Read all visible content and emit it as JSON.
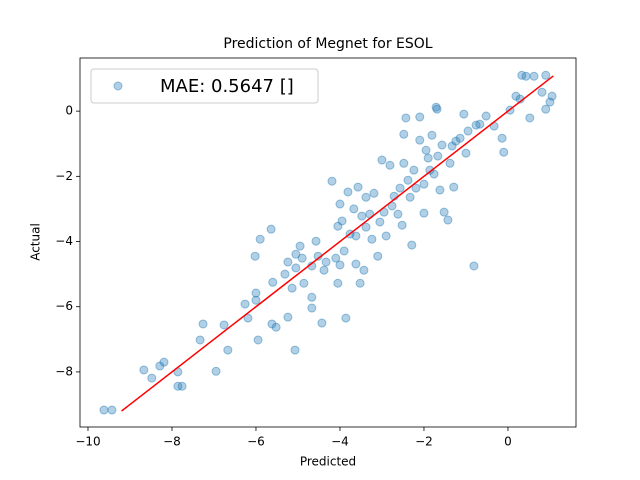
{
  "chart_data": {
    "type": "scatter",
    "title": "Prediction of Megnet for ESOL",
    "x_label": "Predicted",
    "y_label": "Actual",
    "xlim": [
      -10.19,
      1.62
    ],
    "ylim": [
      -9.69,
      1.63
    ],
    "xticks": [
      {
        "value": -10,
        "label": "−10"
      },
      {
        "value": -8,
        "label": "−8"
      },
      {
        "value": -6,
        "label": "−6"
      },
      {
        "value": -4,
        "label": "−4"
      },
      {
        "value": -2,
        "label": "−2"
      },
      0
    ],
    "yticks": [
      {
        "value": -8,
        "label": "−8"
      },
      {
        "value": -6,
        "label": "−6"
      },
      {
        "value": -4,
        "label": "−4"
      },
      {
        "value": -2,
        "label": "−2"
      },
      0
    ],
    "grid": false,
    "legend": "upper left",
    "series": [
      {
        "name": "MAE: 0.5647 []",
        "color": "#1f77b4",
        "x": [
          -9.62,
          -9.43,
          -8.67,
          -8.48,
          -8.29,
          -8.19,
          -7.86,
          -7.86,
          -7.76,
          -7.33,
          -7.26,
          -6.95,
          -6.76,
          -6.67,
          -6.26,
          -6.19,
          -6.0,
          -6.0,
          -5.95,
          -6.02,
          -5.9,
          -5.64,
          -5.62,
          -5.52,
          -5.6,
          -5.31,
          -5.24,
          -5.24,
          -5.07,
          -5.14,
          -5.05,
          -5.05,
          -4.95,
          -4.9,
          -4.86,
          -4.67,
          -4.67,
          -4.67,
          -4.57,
          -4.52,
          -4.43,
          -4.38,
          -4.33,
          -4.19,
          -4.1,
          -4.05,
          -4.0,
          -4.0,
          -4.05,
          -3.95,
          -3.9,
          -3.86,
          -3.81,
          -3.76,
          -3.67,
          -3.62,
          -3.62,
          -3.57,
          -3.52,
          -3.48,
          -3.43,
          -3.38,
          -3.38,
          -3.29,
          -3.24,
          -3.19,
          -3.1,
          -3.05,
          -3.0,
          -2.95,
          -2.9,
          -2.81,
          -2.76,
          -2.71,
          -2.62,
          -2.57,
          -2.52,
          -2.48,
          -2.48,
          -2.43,
          -2.38,
          -2.33,
          -2.29,
          -2.24,
          -2.19,
          -2.1,
          -2.1,
          -2.0,
          -2.0,
          -1.95,
          -1.9,
          -1.86,
          -1.81,
          -1.76,
          -1.71,
          -1.69,
          -1.67,
          -1.62,
          -1.57,
          -1.52,
          -1.43,
          -1.38,
          -1.33,
          -1.29,
          -1.24,
          -1.14,
          -1.05,
          -1.0,
          -0.95,
          -0.81,
          -0.76,
          -0.67,
          -0.52,
          -0.33,
          -0.14,
          -0.1,
          0.05,
          0.19,
          0.29,
          0.33,
          0.43,
          0.52,
          0.62,
          0.81,
          0.9,
          0.9,
          1.0,
          1.05
        ],
        "y": [
          -9.17,
          -9.17,
          -7.94,
          -8.19,
          -7.82,
          -7.7,
          -8.0,
          -8.44,
          -8.44,
          -7.02,
          -6.53,
          -7.98,
          -6.56,
          -7.33,
          -5.92,
          -6.35,
          -5.58,
          -5.8,
          -7.02,
          -4.45,
          -3.93,
          -3.62,
          -6.53,
          -6.63,
          -5.25,
          -5.0,
          -4.63,
          -6.32,
          -7.33,
          -5.43,
          -4.81,
          -4.39,
          -4.14,
          -4.51,
          -5.28,
          -5.71,
          -6.04,
          -4.75,
          -3.99,
          -4.45,
          -6.5,
          -4.88,
          -4.63,
          -2.15,
          -4.51,
          -5.28,
          -4.72,
          -2.85,
          -3.53,
          -3.37,
          -4.29,
          -6.35,
          -2.48,
          -3.77,
          -3.0,
          -4.69,
          -3.83,
          -2.33,
          -5.28,
          -3.22,
          -4.88,
          -2.64,
          -3.56,
          -3.16,
          -3.93,
          -2.52,
          -4.45,
          -3.4,
          -1.5,
          -3.1,
          -3.83,
          -1.66,
          -2.91,
          -2.61,
          -3.16,
          -2.36,
          -3.5,
          -1.6,
          -0.71,
          -0.21,
          -2.12,
          -2.64,
          -4.11,
          -1.81,
          -2.36,
          -0.18,
          -0.89,
          -3.13,
          -2.24,
          -1.2,
          -1.44,
          -1.81,
          -0.74,
          -1.93,
          0.12,
          0.06,
          -1.38,
          -2.42,
          -1.04,
          -3.1,
          -3.34,
          -1.6,
          -1.07,
          -2.33,
          -0.92,
          -0.83,
          -0.09,
          -1.29,
          -0.61,
          -4.75,
          -0.43,
          -0.4,
          -0.15,
          -0.46,
          -0.83,
          -1.26,
          0.03,
          0.46,
          0.37,
          1.1,
          1.07,
          -0.21,
          1.07,
          0.58,
          0.06,
          1.1,
          0.28,
          0.46
        ]
      }
    ],
    "fit_line": {
      "color": "red",
      "x": [
        -9.2,
        1.08
      ],
      "y": [
        -9.2,
        1.08
      ]
    }
  }
}
